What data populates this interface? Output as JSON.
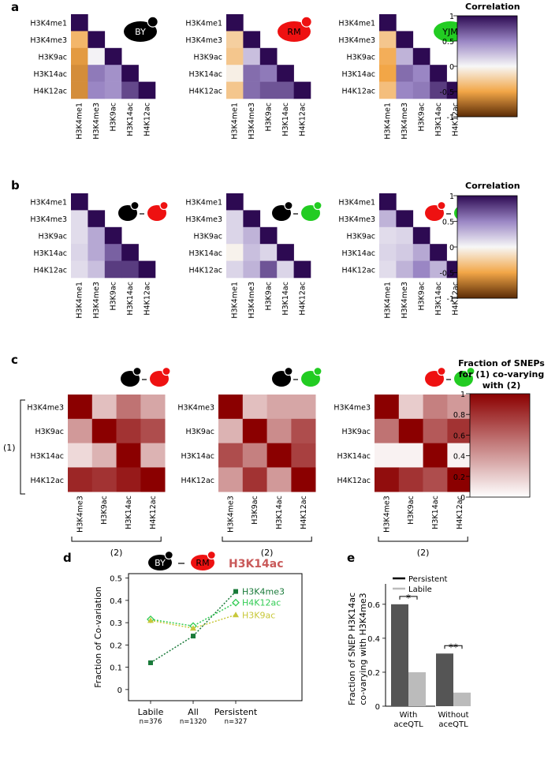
{
  "panel_labels": {
    "a": "a",
    "b": "b",
    "c": "c",
    "d": "d",
    "e": "e"
  },
  "marks": [
    "H3K4me1",
    "H3K4me3",
    "H3K9ac",
    "H3K14ac",
    "H4K12ac"
  ],
  "c_marks": [
    "H3K4me3",
    "H3K9ac",
    "H3K14ac",
    "H4K12ac"
  ],
  "strains": {
    "by": "BY",
    "rm": "RM",
    "yjm": "YJM"
  },
  "colors": {
    "by": "#000000",
    "rm": "#ee1111",
    "yjm": "#22cc22"
  },
  "chart_data": [
    {
      "type": "heatmap",
      "panel": "a",
      "title": "BY",
      "triangle": "lower",
      "rows": [
        "H3K4me1",
        "H3K4me3",
        "H3K9ac",
        "H3K14ac",
        "H4K12ac"
      ],
      "cols": [
        "H3K4me1",
        "H3K4me3",
        "H3K9ac",
        "H3K14ac",
        "H4K12ac"
      ],
      "values": [
        [
          1
        ],
        [
          -0.4,
          1
        ],
        [
          -0.55,
          0.02,
          1
        ],
        [
          -0.6,
          0.55,
          0.45,
          1
        ],
        [
          -0.6,
          0.5,
          0.45,
          0.75,
          1
        ]
      ],
      "range": [
        -1,
        1
      ]
    },
    {
      "type": "heatmap",
      "panel": "a",
      "title": "RM",
      "triangle": "lower",
      "rows": [
        "H3K4me1",
        "H3K4me3",
        "H3K9ac",
        "H3K14ac",
        "H4K12ac"
      ],
      "cols": [
        "H3K4me1",
        "H3K4me3",
        "H3K9ac",
        "H3K14ac",
        "H4K12ac"
      ],
      "values": [
        [
          1
        ],
        [
          -0.25,
          1
        ],
        [
          -0.3,
          0.25,
          1
        ],
        [
          -0.05,
          0.6,
          0.55,
          1
        ],
        [
          -0.3,
          0.6,
          0.7,
          0.7,
          1
        ]
      ],
      "range": [
        -1,
        1
      ]
    },
    {
      "type": "heatmap",
      "panel": "a",
      "title": "YJM",
      "triangle": "lower",
      "rows": [
        "H3K4me1",
        "H3K4me3",
        "H3K9ac",
        "H3K14ac",
        "H4K12ac"
      ],
      "cols": [
        "H3K4me1",
        "H3K4me3",
        "H3K9ac",
        "H3K14ac",
        "H4K12ac"
      ],
      "values": [
        [
          1
        ],
        [
          -0.3,
          1
        ],
        [
          -0.45,
          0.3,
          1
        ],
        [
          -0.5,
          0.6,
          0.5,
          1
        ],
        [
          -0.35,
          0.5,
          0.55,
          0.8,
          1
        ]
      ],
      "range": [
        -1,
        1
      ]
    },
    {
      "type": "heatmap",
      "panel": "b",
      "title": "BY-RM",
      "triangle": "lower",
      "rows": [
        "H3K4me1",
        "H3K4me3",
        "H3K9ac",
        "H3K14ac",
        "H4K12ac"
      ],
      "cols": [
        "H3K4me1",
        "H3K4me3",
        "H3K9ac",
        "H3K14ac",
        "H4K12ac"
      ],
      "values": [
        [
          1
        ],
        [
          0.12,
          1
        ],
        [
          0.12,
          0.35,
          1
        ],
        [
          0.15,
          0.35,
          0.65,
          1
        ],
        [
          0.12,
          0.25,
          0.8,
          0.8,
          1
        ]
      ],
      "range": [
        -1,
        1
      ]
    },
    {
      "type": "heatmap",
      "panel": "b",
      "title": "BY-YJM",
      "triangle": "lower",
      "rows": [
        "H3K4me1",
        "H3K4me3",
        "H3K9ac",
        "H3K14ac",
        "H4K12ac"
      ],
      "cols": [
        "H3K4me1",
        "H3K4me3",
        "H3K9ac",
        "H3K14ac",
        "H4K12ac"
      ],
      "values": [
        [
          1
        ],
        [
          0.15,
          1
        ],
        [
          0.15,
          0.3,
          1
        ],
        [
          -0.03,
          0.25,
          0.15,
          1
        ],
        [
          0.15,
          0.3,
          0.7,
          0.15,
          1
        ]
      ],
      "range": [
        -1,
        1
      ]
    },
    {
      "type": "heatmap",
      "panel": "b",
      "title": "RM-YJM",
      "triangle": "lower",
      "rows": [
        "H3K4me1",
        "H3K4me3",
        "H3K9ac",
        "H3K14ac",
        "H4K12ac"
      ],
      "cols": [
        "H3K4me1",
        "H3K4me3",
        "H3K9ac",
        "H3K14ac",
        "H4K12ac"
      ],
      "values": [
        [
          1
        ],
        [
          0.3,
          1
        ],
        [
          0.12,
          0.15,
          1
        ],
        [
          0.15,
          0.2,
          0.35,
          1
        ],
        [
          0.12,
          0.3,
          0.5,
          0.3,
          1
        ]
      ],
      "range": [
        -1,
        1
      ]
    },
    {
      "type": "heatmap",
      "panel": "c",
      "title": "BY-RM",
      "rows": [
        "H3K4me3",
        "H3K9ac",
        "H3K14ac",
        "H4K12ac"
      ],
      "cols": [
        "H3K4me3",
        "H3K9ac",
        "H3K14ac",
        "H4K12ac"
      ],
      "values": [
        [
          1,
          0.25,
          0.55,
          0.35
        ],
        [
          0.4,
          1,
          0.8,
          0.7
        ],
        [
          0.15,
          0.3,
          1,
          0.3
        ],
        [
          0.85,
          0.8,
          0.9,
          1
        ]
      ],
      "range": [
        0,
        1
      ]
    },
    {
      "type": "heatmap",
      "panel": "c",
      "title": "BY-YJM",
      "rows": [
        "H3K4me3",
        "H3K9ac",
        "H3K14ac",
        "H4K12ac"
      ],
      "cols": [
        "H3K4me3",
        "H3K9ac",
        "H3K14ac",
        "H4K12ac"
      ],
      "values": [
        [
          1,
          0.25,
          0.35,
          0.35
        ],
        [
          0.3,
          1,
          0.45,
          0.7
        ],
        [
          0.7,
          0.5,
          1,
          0.75
        ],
        [
          0.4,
          0.8,
          0.4,
          1
        ]
      ],
      "range": [
        0,
        1
      ]
    },
    {
      "type": "heatmap",
      "panel": "c",
      "title": "RM-YJM",
      "rows": [
        "H3K4me3",
        "H3K9ac",
        "H3K14ac",
        "H4K12ac"
      ],
      "cols": [
        "H3K4me3",
        "H3K9ac",
        "H3K14ac",
        "H4K12ac"
      ],
      "values": [
        [
          1,
          0.2,
          0.5,
          0.4
        ],
        [
          0.55,
          1,
          0.65,
          0.8
        ],
        [
          0.05,
          0.05,
          1,
          0.05
        ],
        [
          0.95,
          0.8,
          0.7,
          1
        ]
      ],
      "range": [
        0,
        1
      ]
    },
    {
      "type": "line",
      "panel": "d",
      "title": "H3K14ac",
      "subtitle_strains": "BY - RM",
      "x": [
        "Labile",
        "All",
        "Persistent"
      ],
      "x_n": [
        "n=376",
        "n=1320",
        "n=327"
      ],
      "ylabel": "Fraction of Co-variation",
      "ylim": [
        -0.05,
        0.52
      ],
      "yticks": [
        "0",
        "0.1",
        "0.2",
        "0.3",
        "0.4",
        "0.5"
      ],
      "series": [
        {
          "name": "H3K4me3",
          "values": [
            0.12,
            0.24,
            0.44
          ],
          "color": "#1a7a3a",
          "marker": "square"
        },
        {
          "name": "H4K12ac",
          "values": [
            0.315,
            0.285,
            0.39
          ],
          "color": "#33cc55",
          "marker": "diamond"
        },
        {
          "name": "H3K9ac",
          "values": [
            0.31,
            0.275,
            0.335
          ],
          "color": "#c8c83a",
          "marker": "triangle"
        }
      ]
    },
    {
      "type": "bar",
      "panel": "e",
      "ylabel_line1": "Fraction of SNEP H3K14ac",
      "ylabel_line2": "co-varying with H3K4me3",
      "categories": [
        [
          "With",
          "aceQTL"
        ],
        [
          "Without",
          "aceQTL"
        ]
      ],
      "series": [
        {
          "name": "Persistent",
          "values": [
            0.6,
            0.31
          ],
          "color": "#555555"
        },
        {
          "name": "Labile",
          "values": [
            0.2,
            0.08
          ],
          "color": "#bbbbbb"
        }
      ],
      "ylim": [
        0,
        0.72
      ],
      "yticks": [
        "0",
        "0.2",
        "0.4",
        "0.6"
      ],
      "significance": [
        "*",
        "**"
      ]
    }
  ],
  "colorbar_corr": {
    "title": "Correlation",
    "ticks": [
      "1",
      "0.5",
      "0",
      "-0.5",
      "-1"
    ]
  },
  "colorbar_frac": {
    "title_line1": "Fraction of SNEPs",
    "title_line2": "for (1) co-varying",
    "title_line3": "with (2)",
    "ticks": [
      "1",
      "0.8",
      "0.6",
      "0.4",
      "0.2",
      "0"
    ]
  },
  "group_labels": {
    "rows": "(1)",
    "cols": "(2)"
  }
}
